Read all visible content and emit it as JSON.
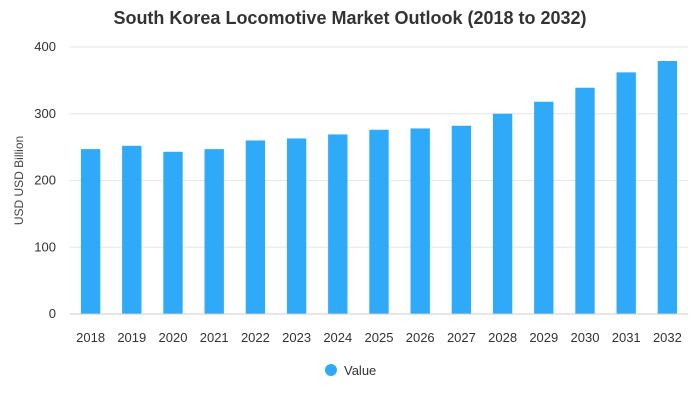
{
  "chart_data": {
    "type": "bar",
    "title": "South Korea Locomotive Market Outlook (2018 to 2032)",
    "xlabel": "",
    "ylabel": "USD USD Billion",
    "categories": [
      "2018",
      "2019",
      "2020",
      "2021",
      "2022",
      "2023",
      "2024",
      "2025",
      "2026",
      "2027",
      "2028",
      "2029",
      "2030",
      "2031",
      "2032"
    ],
    "series": [
      {
        "name": "Value",
        "color": "#2eaaf9",
        "values": [
          247,
          252,
          243,
          247,
          260,
          263,
          269,
          276,
          278,
          282,
          300,
          318,
          339,
          362,
          379
        ]
      }
    ],
    "ylim": [
      0,
      400
    ],
    "yticks": [
      0,
      100,
      200,
      300,
      400
    ],
    "grid": true,
    "legend_position": "bottom-center"
  }
}
